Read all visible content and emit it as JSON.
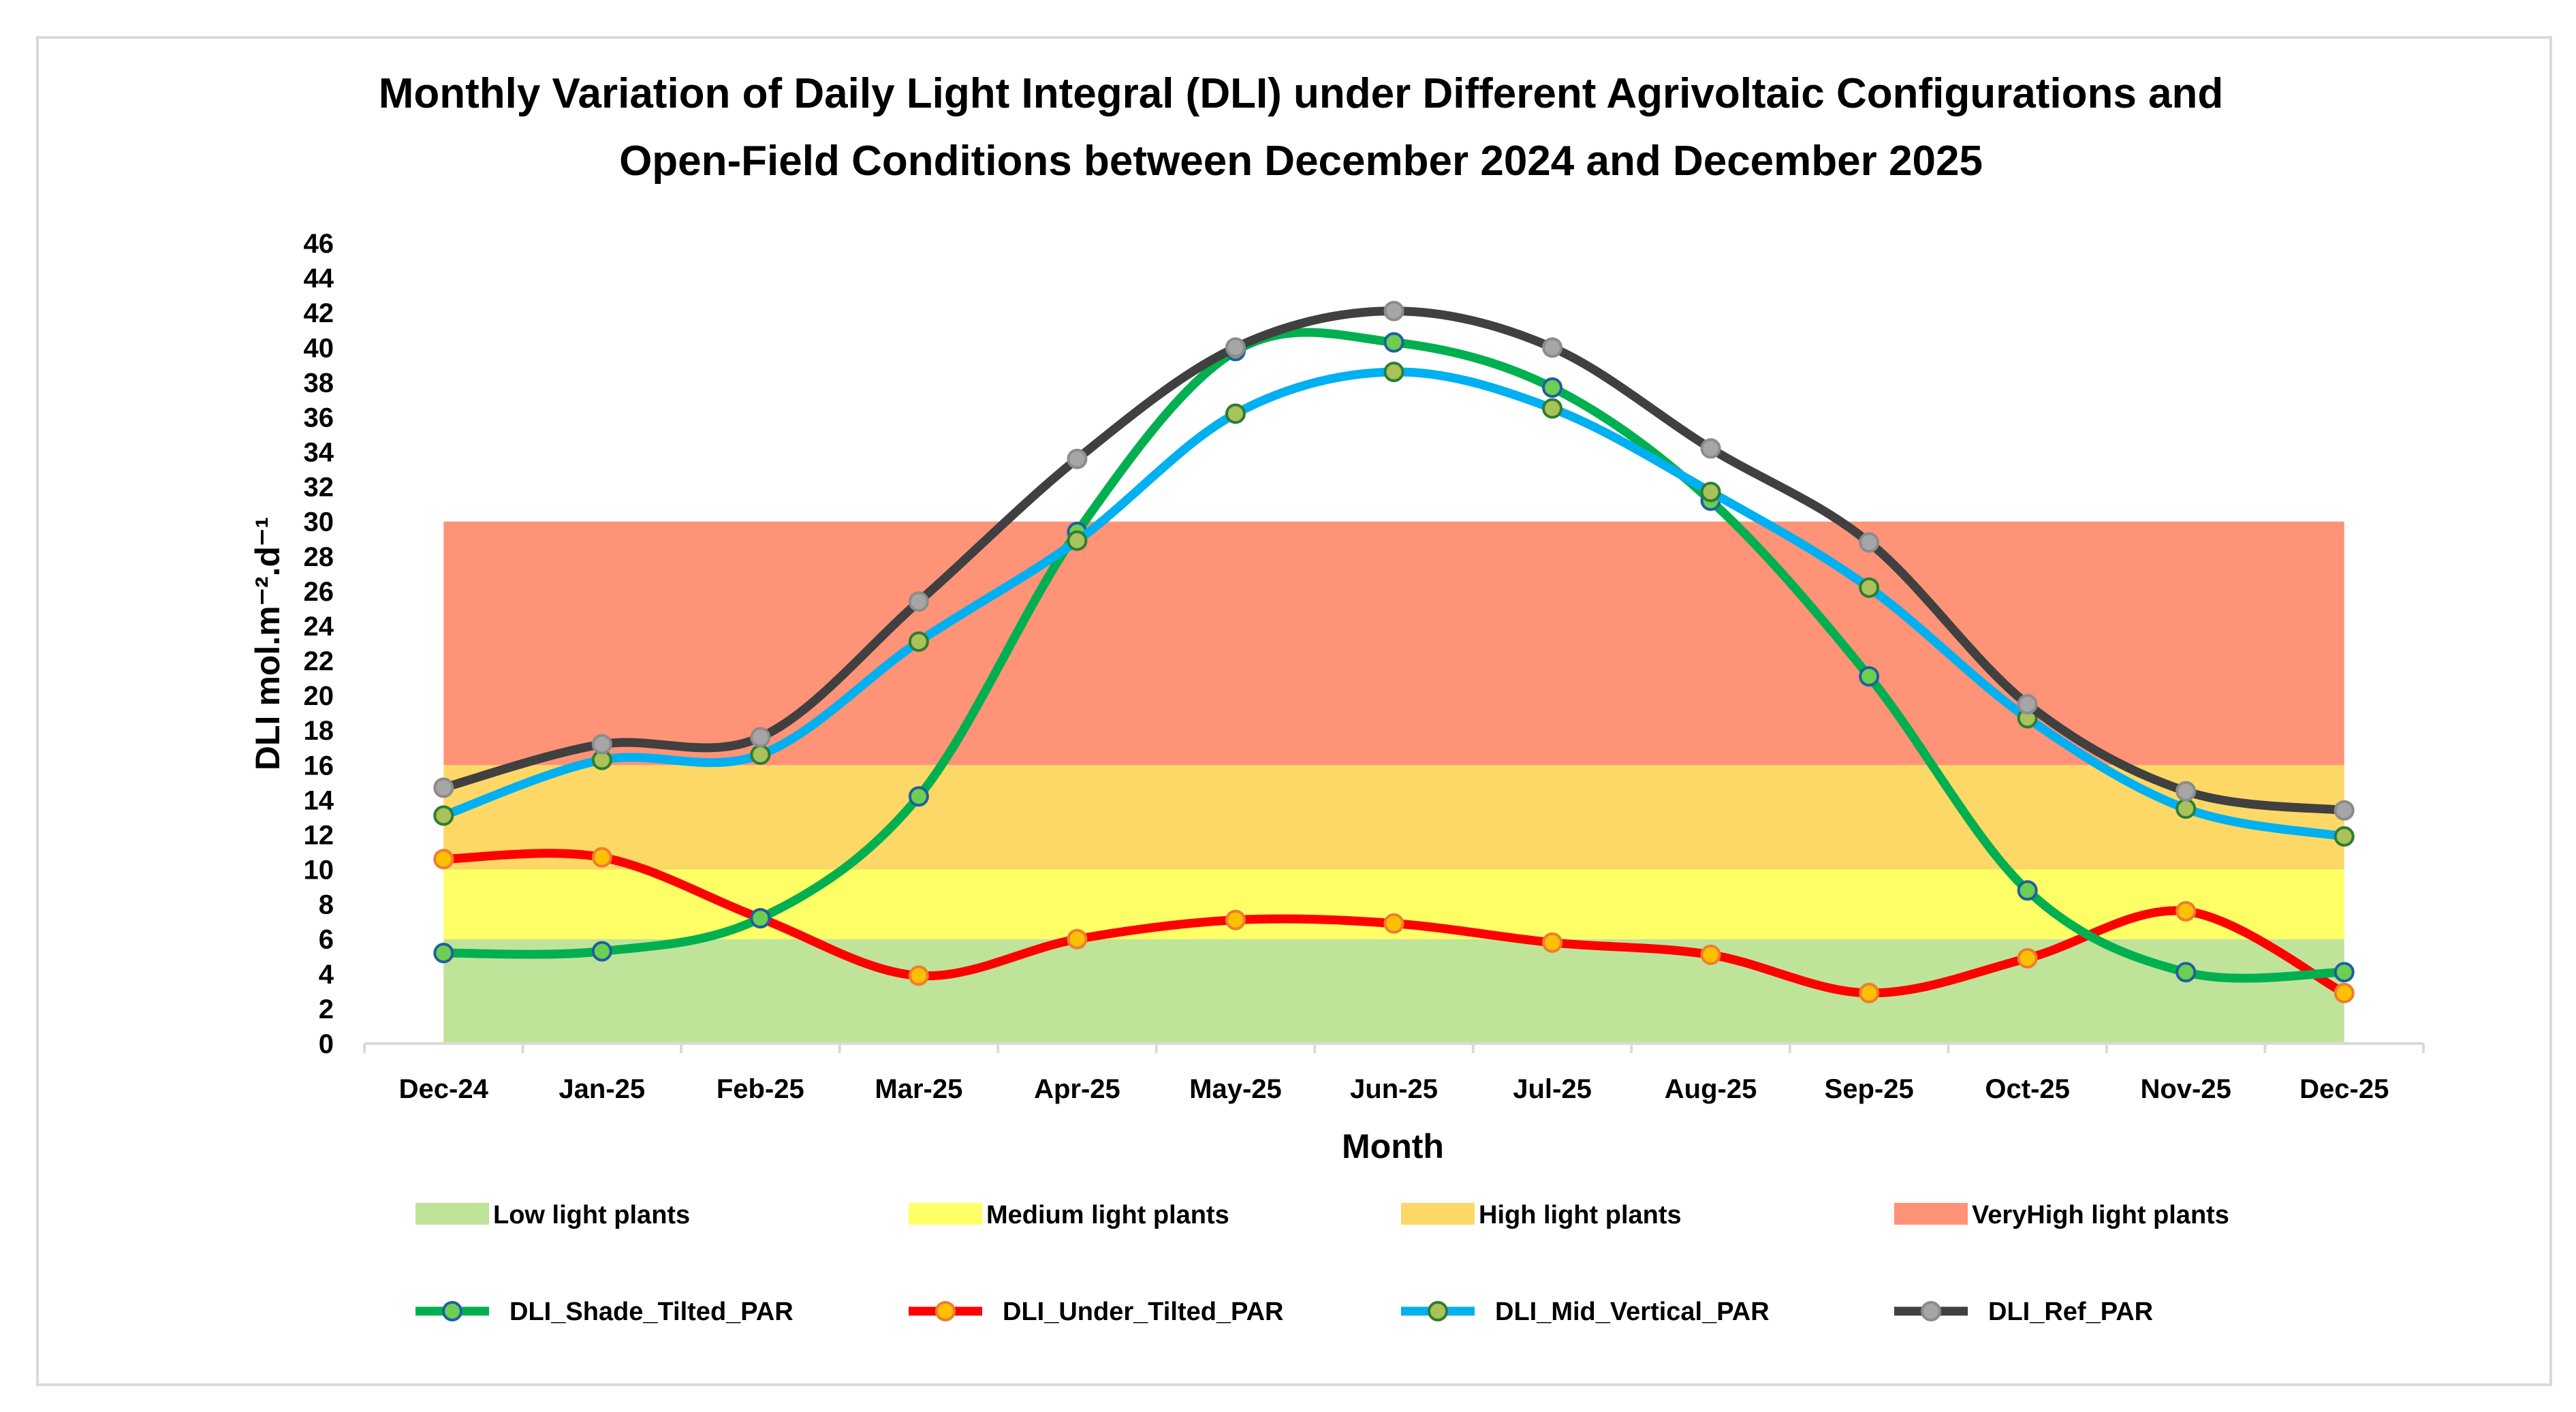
{
  "chart_data": {
    "type": "line",
    "title_lines": [
      "Monthly Variation of Daily Light Integral (DLI) under Different Agrivoltaic Configurations and",
      "Open-Field Conditions between December 2024 and December 2025"
    ],
    "xlabel": "Month",
    "ylabel": "DLI mol.m⁻².d⁻¹",
    "ylim": [
      0,
      46
    ],
    "yticks": [
      0,
      2,
      4,
      6,
      8,
      10,
      12,
      14,
      16,
      18,
      20,
      22,
      24,
      26,
      28,
      30,
      32,
      34,
      36,
      38,
      40,
      42,
      44,
      46
    ],
    "grid": false,
    "categories": [
      "Dec-24",
      "Jan-25",
      "Feb-25",
      "Mar-25",
      "Apr-25",
      "May-25",
      "Jun-25",
      "Jul-25",
      "Aug-25",
      "Sep-25",
      "Oct-25",
      "Nov-25",
      "Dec-25"
    ],
    "bands": [
      {
        "name": "Low light plants",
        "from": 0,
        "to": 6,
        "color": "#c0e39a"
      },
      {
        "name": "Medium light plants",
        "from": 6,
        "to": 10,
        "color": "#ffff66"
      },
      {
        "name": "High light plants",
        "from": 10,
        "to": 16,
        "color": "#fdd866"
      },
      {
        "name": "VeryHigh light plants",
        "from": 16,
        "to": 30,
        "color": "#ff9378"
      }
    ],
    "series": [
      {
        "name": "DLI_Shade_Tilted_PAR",
        "color": "#00b050",
        "marker_fill": "#6ccf50",
        "marker_edge": "#1f5fa0",
        "values": [
          5.2,
          5.3,
          7.2,
          14.2,
          29.4,
          39.8,
          40.3,
          37.7,
          31.2,
          21.1,
          8.8,
          4.1,
          4.1
        ]
      },
      {
        "name": "DLI_Under_Tilted_PAR",
        "color": "#ff0000",
        "marker_fill": "#ffc000",
        "marker_edge": "#ed7d31",
        "values": [
          10.6,
          10.7,
          7.2,
          3.9,
          6.0,
          7.1,
          6.9,
          5.8,
          5.1,
          2.9,
          4.9,
          7.6,
          2.9
        ]
      },
      {
        "name": "DLI_Mid_Vertical_PAR",
        "color": "#00b0f0",
        "marker_fill": "#a9c25a",
        "marker_edge": "#2e7d32",
        "values": [
          13.1,
          16.3,
          16.6,
          23.1,
          28.9,
          36.2,
          38.6,
          36.5,
          31.7,
          26.2,
          18.7,
          13.5,
          11.9
        ]
      },
      {
        "name": "DLI_Ref_PAR",
        "color": "#404040",
        "marker_fill": "#a6a6a6",
        "marker_edge": "#8c8c8c",
        "values": [
          14.7,
          17.2,
          17.6,
          25.4,
          33.6,
          40.0,
          42.1,
          40.0,
          34.2,
          28.8,
          19.5,
          14.5,
          13.4
        ]
      }
    ],
    "legend_placement": "bottom"
  }
}
